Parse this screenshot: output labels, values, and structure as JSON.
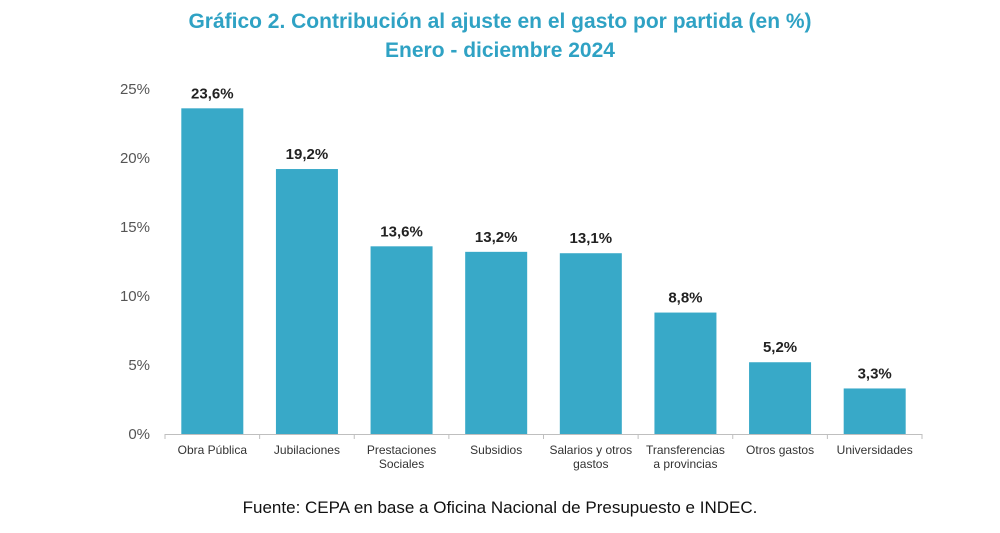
{
  "colors": {
    "title": "#2fa2c4",
    "bar": "#38a9c8",
    "axis": "#bfbfbf"
  },
  "chart_data": {
    "type": "bar",
    "title": "Gráfico 2. Contribución al ajuste en el gasto por partida (en %)",
    "subtitle": "Enero - diciembre 2024",
    "categories": [
      "Obra Pública",
      "Jubilaciones",
      "Prestaciones\nSociales",
      "Subsidios",
      "Salarios y otros\ngastos",
      "Transferencias\na provincias",
      "Otros gastos",
      "Universidades"
    ],
    "values": [
      23.6,
      19.2,
      13.6,
      13.2,
      13.1,
      8.8,
      5.2,
      3.3
    ],
    "data_labels": [
      "23,6%",
      "19,2%",
      "13,6%",
      "13,2%",
      "13,1%",
      "8,8%",
      "5,2%",
      "3,3%"
    ],
    "yticks": [
      0,
      5,
      10,
      15,
      20,
      25
    ],
    "ytick_labels": [
      "0%",
      "5%",
      "10%",
      "15%",
      "20%",
      "25%"
    ],
    "ylim": [
      0,
      25
    ],
    "grid": false,
    "legend": "none"
  },
  "source": "Fuente: CEPA en base a Oficina Nacional de Presupuesto e INDEC."
}
